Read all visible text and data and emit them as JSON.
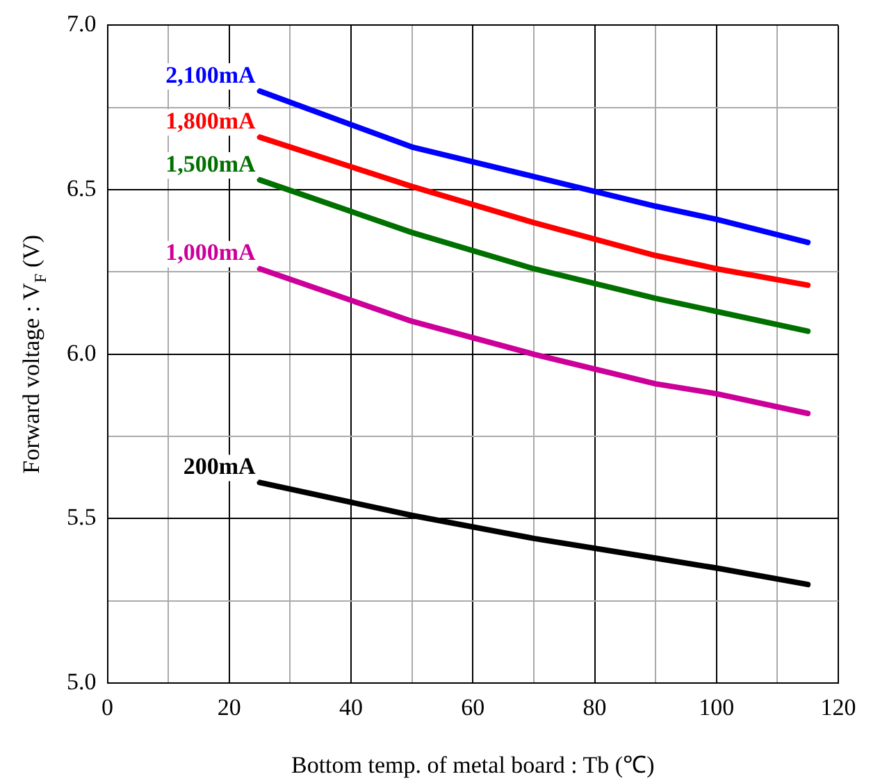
{
  "chart_data": {
    "type": "line",
    "xlabel": "Bottom temp. of metal board : Tb (℃)",
    "ylabel": "Forward voltage : V$_{F}$ (V)",
    "xlim": [
      0,
      120
    ],
    "xticks": [
      0,
      {
        "value": 10,
        "label": null
      },
      20,
      {
        "value": 30,
        "label": null
      },
      40,
      {
        "value": 50,
        "label": null
      },
      60,
      {
        "value": 70,
        "label": null
      },
      80,
      {
        "value": 90,
        "label": null
      },
      100,
      {
        "value": 110,
        "label": null
      },
      120
    ],
    "ylim": [
      5.0,
      7.0
    ],
    "yticks": [
      {
        "value": 5.0,
        "label": "5.0"
      },
      {
        "value": 5.25,
        "label": null
      },
      {
        "value": 5.5,
        "label": "5.5"
      },
      {
        "value": 5.75,
        "label": null
      },
      {
        "value": 6.0,
        "label": "6.0"
      },
      {
        "value": 6.25,
        "label": null
      },
      {
        "value": 6.5,
        "label": "6.5"
      },
      {
        "value": 6.75,
        "label": null
      },
      {
        "value": 7.0,
        "label": "7.0"
      }
    ],
    "grid": true,
    "legend": false,
    "marker": "none",
    "line_style": "solid",
    "x": [
      25,
      50,
      70,
      90,
      100,
      115
    ],
    "series": [
      {
        "name": "2,100mA",
        "color": "#0000ff",
        "values": [
          6.8,
          6.63,
          6.54,
          6.45,
          6.41,
          6.34
        ]
      },
      {
        "name": "1,800mA",
        "color": "#ff0000",
        "values": [
          6.66,
          6.51,
          6.4,
          6.3,
          6.26,
          6.21
        ]
      },
      {
        "name": "1,500mA",
        "color": "#007000",
        "values": [
          6.53,
          6.37,
          6.26,
          6.17,
          6.13,
          6.07
        ]
      },
      {
        "name": "1,000mA",
        "color": "#cc0099",
        "values": [
          6.26,
          6.1,
          6.0,
          5.91,
          5.88,
          5.82
        ]
      },
      {
        "name": "200mA",
        "color": "#000000",
        "values": [
          5.61,
          5.51,
          5.44,
          5.38,
          5.35,
          5.3
        ]
      }
    ]
  }
}
